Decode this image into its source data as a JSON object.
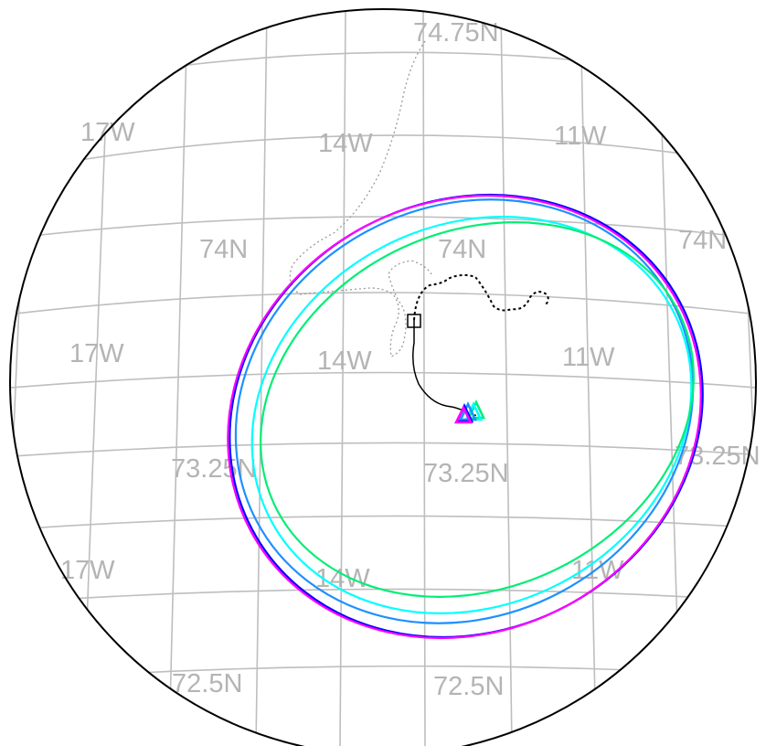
{
  "map": {
    "graticule_color": "#bebebe",
    "label_color": "#b4b4b4",
    "labels": {
      "lat_74_75": "74.75N",
      "lat_74": "74N",
      "lat_73_25": "73.25N",
      "lat_72_5": "72.5N",
      "lon_17w": "17W",
      "lon_14w": "14W",
      "lon_11w": "11W"
    },
    "markers": {
      "start": "square",
      "end": "triangle"
    },
    "ellipse_colors": [
      "#0000ff",
      "#1e90ff",
      "#00ffff",
      "#00ee76",
      "#ff00ff"
    ],
    "triangle_colors": [
      "#ff00ff",
      "#0000ff",
      "#1e90ff",
      "#00ffff",
      "#00ee76"
    ]
  }
}
